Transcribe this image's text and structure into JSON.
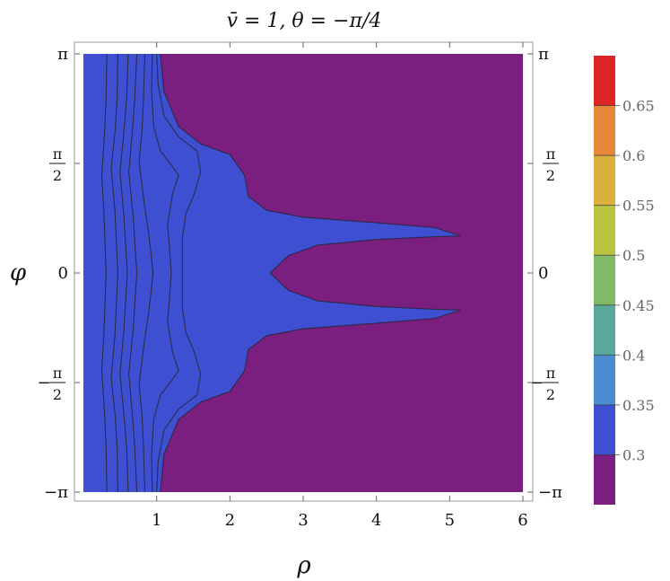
{
  "chart_data": {
    "type": "contour",
    "title": "v̄ = 1,    θ = −π/4",
    "xlabel": "ρ",
    "ylabel": "φ",
    "xlim": [
      0,
      6
    ],
    "ylim": [
      -3.14159,
      3.14159
    ],
    "x_ticks": [
      "1",
      "2",
      "3",
      "4",
      "5",
      "6"
    ],
    "x_tick_values": [
      1,
      2,
      3,
      4,
      5,
      6
    ],
    "y_ticks": [
      {
        "value": 3.14159,
        "main": "π",
        "sign": "",
        "num": "",
        "den": ""
      },
      {
        "value": 1.5708,
        "main": "",
        "sign": "",
        "num": "π",
        "den": "2"
      },
      {
        "value": 0,
        "main": "0",
        "sign": "",
        "num": "",
        "den": ""
      },
      {
        "value": -1.5708,
        "main": "",
        "sign": "−",
        "num": "π",
        "den": "2"
      },
      {
        "value": -3.14159,
        "main": "−π",
        "sign": "",
        "num": "",
        "den": ""
      }
    ],
    "legend_position": "right",
    "colorbar": {
      "range": [
        0.25,
        0.7
      ],
      "tick_labels": [
        "0.3",
        "0.35",
        "0.4",
        "0.45",
        "0.5",
        "0.55",
        "0.6",
        "0.65"
      ],
      "tick_values": [
        0.3,
        0.35,
        0.4,
        0.45,
        0.5,
        0.55,
        0.6,
        0.65
      ]
    },
    "levels": [
      {
        "range": [
          0.25,
          0.3
        ],
        "color": "#7a1f80"
      },
      {
        "range": [
          0.3,
          0.35
        ],
        "color": "#3e4fd2"
      },
      {
        "range": [
          0.35,
          0.4
        ],
        "color": "#4b8dd0"
      },
      {
        "range": [
          0.4,
          0.45
        ],
        "color": "#5aa89c"
      },
      {
        "range": [
          0.45,
          0.5
        ],
        "color": "#82b967"
      },
      {
        "range": [
          0.5,
          0.55
        ],
        "color": "#b9c33f"
      },
      {
        "range": [
          0.55,
          0.6
        ],
        "color": "#dbb03e"
      },
      {
        "range": [
          0.6,
          0.65
        ],
        "color": "#e6873a"
      },
      {
        "range": [
          0.65,
          0.7
        ],
        "color": "#dc2525"
      }
    ],
    "contour_lines": [
      {
        "level": 0.65,
        "points": [
          [
            0.32,
            3.14
          ],
          [
            0.31,
            2.5
          ],
          [
            0.28,
            1.85
          ],
          [
            0.25,
            1.4
          ],
          [
            0.28,
            0.85
          ],
          [
            0.31,
            0
          ],
          [
            0.28,
            -0.85
          ],
          [
            0.25,
            -1.4
          ],
          [
            0.28,
            -1.85
          ],
          [
            0.31,
            -2.5
          ],
          [
            0.32,
            -3.14
          ]
        ]
      },
      {
        "level": 0.6,
        "points": [
          [
            0.47,
            3.14
          ],
          [
            0.46,
            2.5
          ],
          [
            0.43,
            2.0
          ],
          [
            0.38,
            1.5
          ],
          [
            0.43,
            0.9
          ],
          [
            0.47,
            0
          ],
          [
            0.43,
            -0.9
          ],
          [
            0.38,
            -1.5
          ],
          [
            0.43,
            -2.0
          ],
          [
            0.46,
            -2.5
          ],
          [
            0.47,
            -3.14
          ]
        ]
      },
      {
        "level": 0.55,
        "points": [
          [
            0.61,
            3.14
          ],
          [
            0.59,
            2.5
          ],
          [
            0.55,
            2.0
          ],
          [
            0.5,
            1.45
          ],
          [
            0.55,
            0.85
          ],
          [
            0.6,
            0
          ],
          [
            0.55,
            -0.85
          ],
          [
            0.5,
            -1.45
          ],
          [
            0.55,
            -2.0
          ],
          [
            0.59,
            -2.5
          ],
          [
            0.61,
            -3.14
          ]
        ]
      },
      {
        "level": 0.5,
        "points": [
          [
            0.73,
            3.14
          ],
          [
            0.7,
            2.5
          ],
          [
            0.67,
            2.05
          ],
          [
            0.62,
            1.45
          ],
          [
            0.68,
            0.8
          ],
          [
            0.73,
            0
          ],
          [
            0.68,
            -0.8
          ],
          [
            0.62,
            -1.45
          ],
          [
            0.67,
            -2.05
          ],
          [
            0.7,
            -2.5
          ],
          [
            0.73,
            -3.14
          ]
        ]
      },
      {
        "level": 0.45,
        "points": [
          [
            0.84,
            3.14
          ],
          [
            0.82,
            2.5
          ],
          [
            0.8,
            2.05
          ],
          [
            0.76,
            1.6
          ],
          [
            0.83,
            1.0
          ],
          [
            0.9,
            0.5
          ],
          [
            0.95,
            0
          ],
          [
            0.9,
            -0.5
          ],
          [
            0.83,
            -1.0
          ],
          [
            0.76,
            -1.6
          ],
          [
            0.8,
            -2.05
          ],
          [
            0.82,
            -2.5
          ],
          [
            0.84,
            -3.14
          ]
        ]
      },
      {
        "level": 0.4,
        "points": [
          [
            0.94,
            3.14
          ],
          [
            0.93,
            2.6
          ],
          [
            0.96,
            2.1
          ],
          [
            1.05,
            1.75
          ],
          [
            1.2,
            1.55
          ],
          [
            1.3,
            1.4
          ],
          [
            1.22,
            1.15
          ],
          [
            1.15,
            0.7
          ],
          [
            1.2,
            0
          ],
          [
            1.15,
            -0.7
          ],
          [
            1.22,
            -1.15
          ],
          [
            1.3,
            -1.4
          ],
          [
            1.2,
            -1.55
          ],
          [
            1.05,
            -1.75
          ],
          [
            0.96,
            -2.1
          ],
          [
            0.93,
            -2.6
          ],
          [
            0.94,
            -3.14
          ]
        ]
      },
      {
        "level": 0.35,
        "points": [
          [
            1.0,
            3.14
          ],
          [
            1.02,
            2.7
          ],
          [
            1.1,
            2.25
          ],
          [
            1.3,
            1.95
          ],
          [
            1.55,
            1.75
          ],
          [
            1.6,
            1.45
          ],
          [
            1.52,
            1.15
          ],
          [
            1.4,
            0.85
          ],
          [
            1.35,
            0.5
          ],
          [
            1.35,
            0
          ],
          [
            1.35,
            -0.5
          ],
          [
            1.4,
            -0.85
          ],
          [
            1.52,
            -1.15
          ],
          [
            1.6,
            -1.45
          ],
          [
            1.55,
            -1.75
          ],
          [
            1.3,
            -1.95
          ],
          [
            1.1,
            -2.25
          ],
          [
            1.02,
            -2.7
          ],
          [
            1.0,
            -3.14
          ]
        ]
      },
      {
        "level": 0.3,
        "points": [
          [
            1.05,
            3.14
          ],
          [
            1.1,
            2.6
          ],
          [
            1.3,
            2.1
          ],
          [
            1.6,
            1.85
          ],
          [
            2.0,
            1.7
          ],
          [
            2.2,
            1.4
          ],
          [
            2.25,
            1.1
          ],
          [
            2.5,
            0.9
          ],
          [
            3.0,
            0.8
          ],
          [
            4.0,
            0.72
          ],
          [
            4.8,
            0.65
          ],
          [
            5.15,
            0.53
          ],
          [
            4.8,
            0.52
          ],
          [
            4.0,
            0.48
          ],
          [
            3.2,
            0.4
          ],
          [
            2.8,
            0.25
          ],
          [
            2.55,
            0
          ],
          [
            2.8,
            -0.25
          ],
          [
            3.2,
            -0.4
          ],
          [
            4.0,
            -0.48
          ],
          [
            4.8,
            -0.52
          ],
          [
            5.15,
            -0.53
          ],
          [
            4.8,
            -0.65
          ],
          [
            4.0,
            -0.72
          ],
          [
            3.0,
            -0.8
          ],
          [
            2.5,
            -0.9
          ],
          [
            2.25,
            -1.1
          ],
          [
            2.2,
            -1.4
          ],
          [
            2.0,
            -1.7
          ],
          [
            1.6,
            -1.85
          ],
          [
            1.3,
            -2.1
          ],
          [
            1.1,
            -2.6
          ],
          [
            1.05,
            -3.14
          ]
        ]
      }
    ]
  }
}
